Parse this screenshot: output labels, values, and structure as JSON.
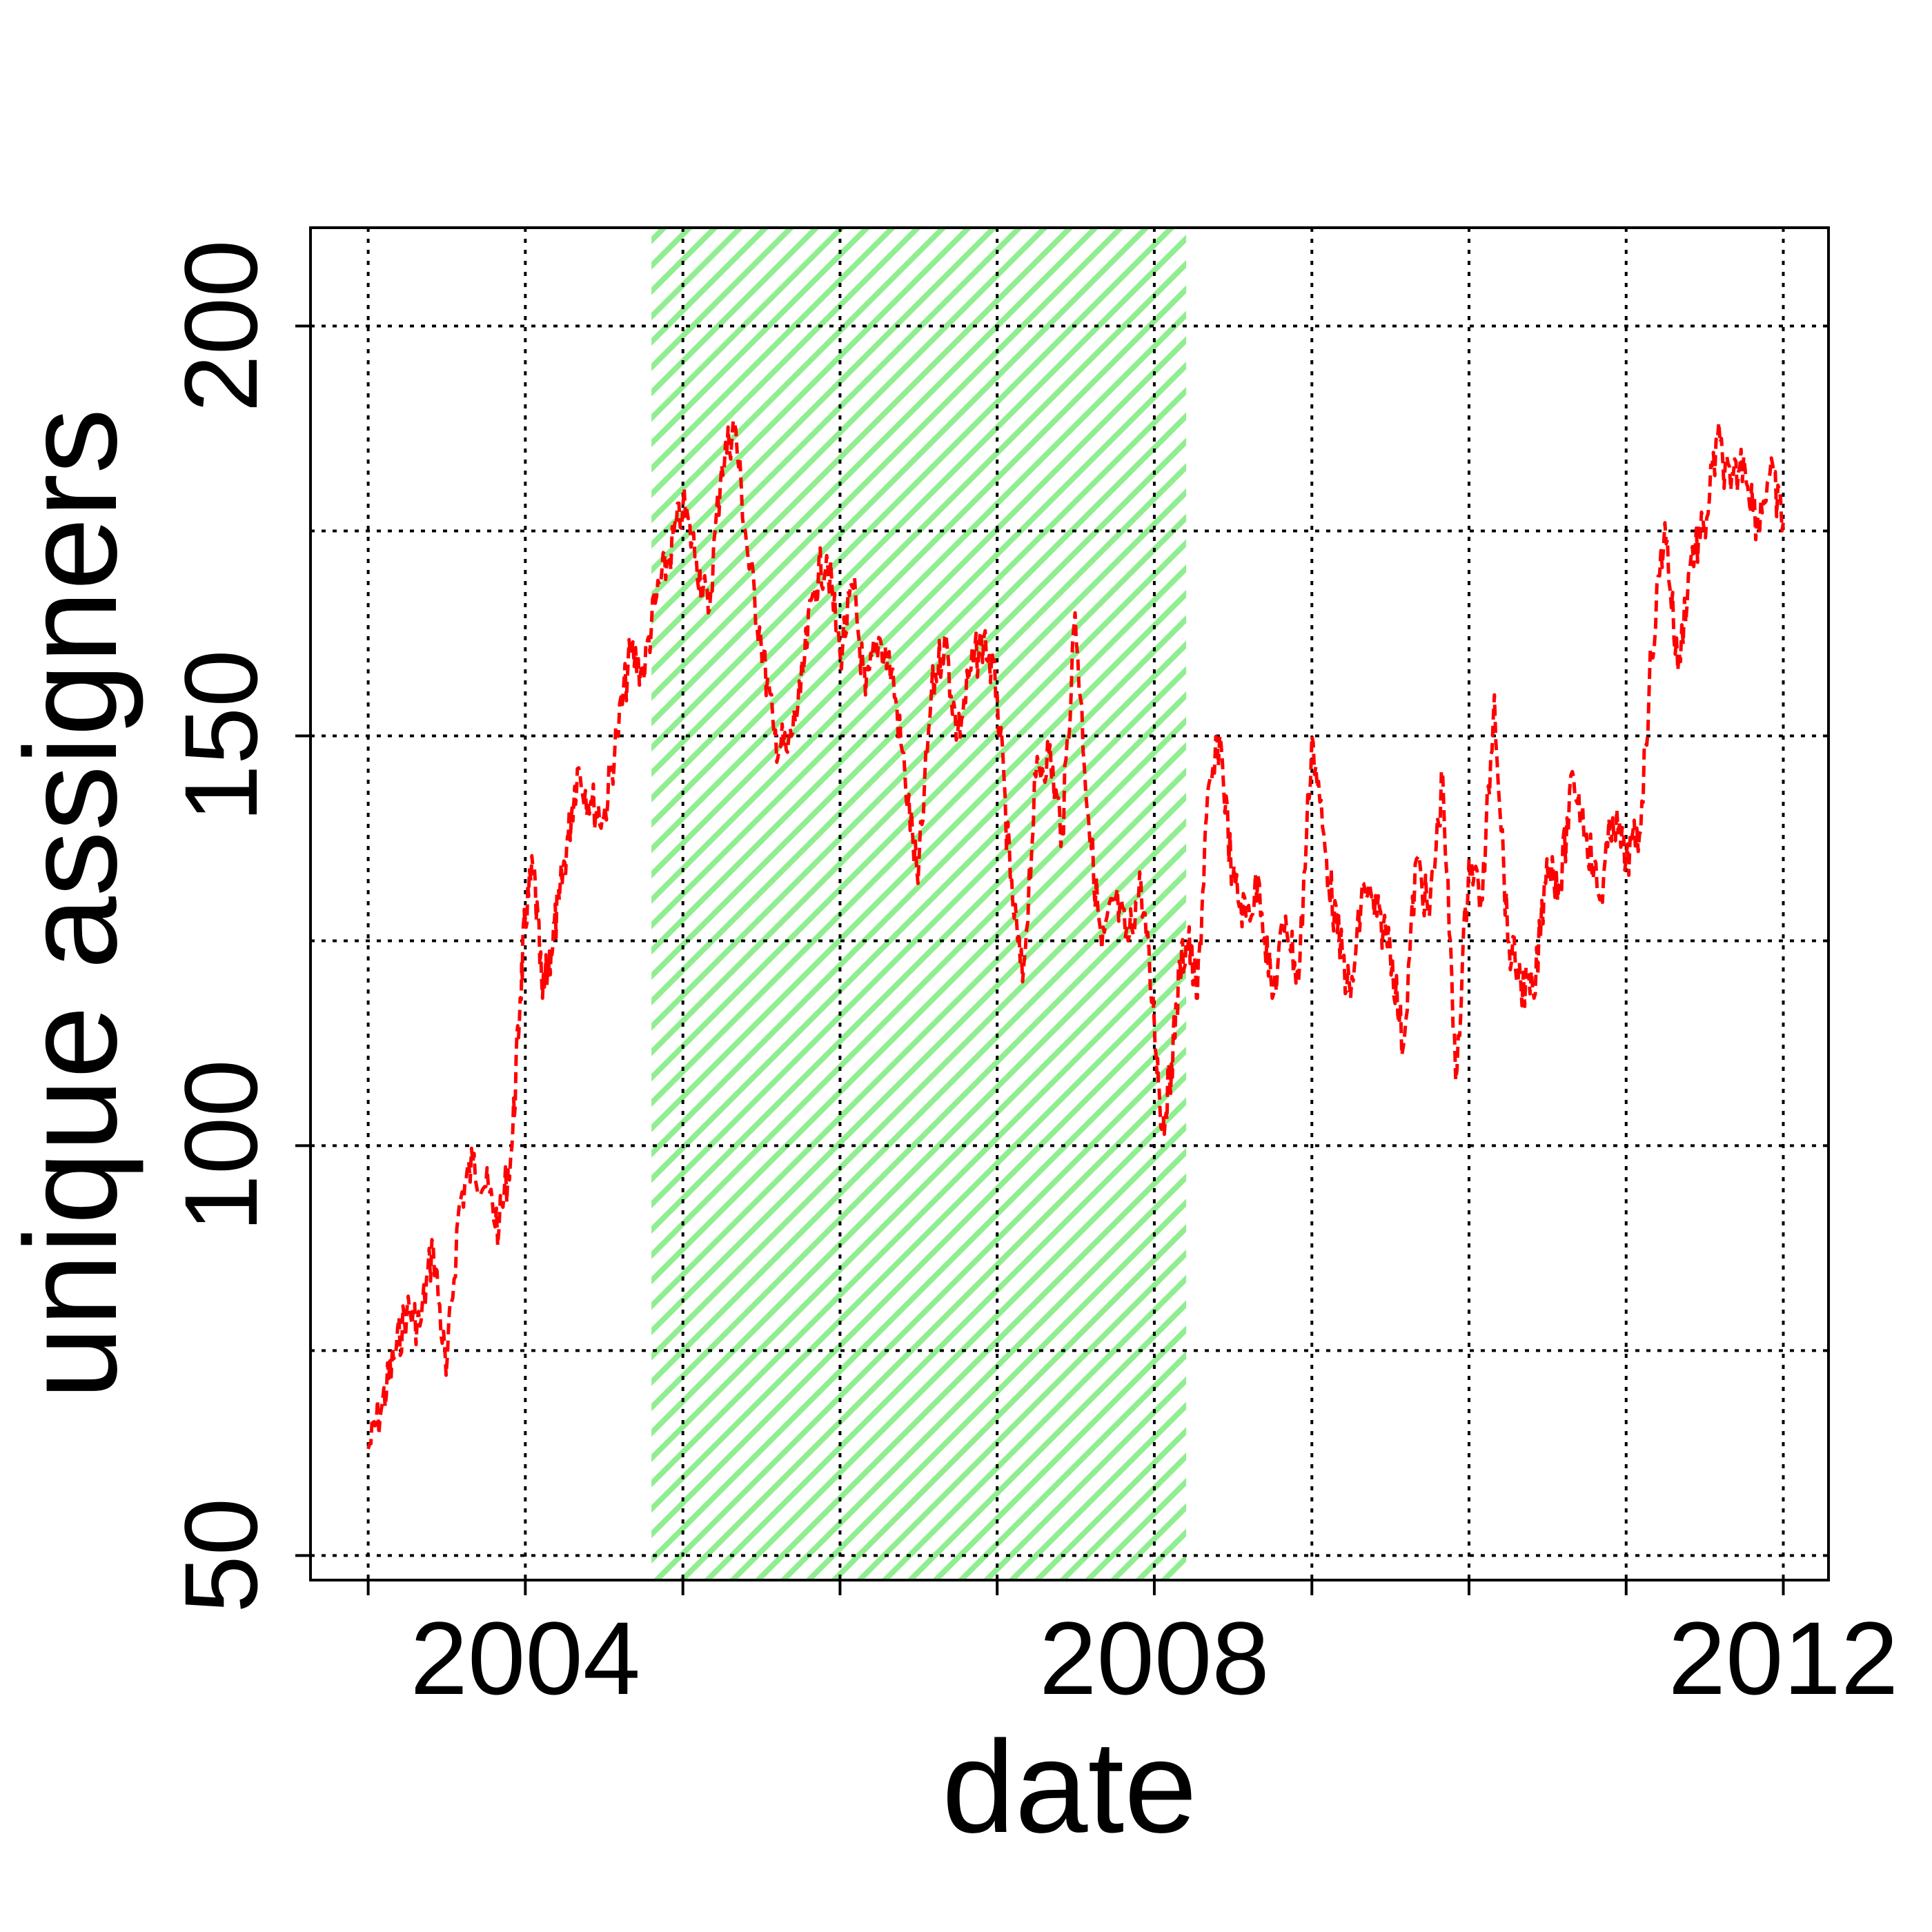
{
  "chart_data": {
    "type": "line",
    "xlabel": "date",
    "ylabel": "unique assigners",
    "xlim": [
      "2002-08-20",
      "2012-04-15"
    ],
    "ylim": [
      47,
      212
    ],
    "x_ticks": [
      "2003-01-01",
      "2004-01-01",
      "2005-01-01",
      "2006-01-01",
      "2007-01-01",
      "2008-01-01",
      "2009-01-01",
      "2010-01-01",
      "2011-01-01",
      "2012-01-01"
    ],
    "x_tick_labels": [
      {
        "date": "2004-01-01",
        "label": "2004"
      },
      {
        "date": "2008-01-01",
        "label": "2008"
      },
      {
        "date": "2012-01-01",
        "label": "2012"
      }
    ],
    "y_ticks": [
      50,
      100,
      150,
      200
    ],
    "y_grid": [
      50,
      75,
      100,
      125,
      150,
      175,
      200
    ],
    "grid": true,
    "shaded_region": {
      "start": "2004-10-20",
      "end": "2008-03-15",
      "color": "#90ee90",
      "pattern": "diagonal hatch"
    },
    "series_color": "#ff0000",
    "line_style": "dashed",
    "series": [
      {
        "points": [
          [
            "2003-01-01",
            63
          ],
          [
            "2003-02-01",
            68
          ],
          [
            "2003-03-01",
            74
          ],
          [
            "2003-04-01",
            80
          ],
          [
            "2003-05-01",
            78
          ],
          [
            "2003-06-01",
            88
          ],
          [
            "2003-07-01",
            72
          ],
          [
            "2003-08-01",
            93
          ],
          [
            "2003-09-01",
            98
          ],
          [
            "2003-10-01",
            95
          ],
          [
            "2003-11-01",
            90
          ],
          [
            "2003-12-01",
            100
          ],
          [
            "2003-12-20",
            118
          ],
          [
            "2004-01-01",
            128
          ],
          [
            "2004-01-20",
            134
          ],
          [
            "2004-02-10",
            118
          ],
          [
            "2004-03-01",
            124
          ],
          [
            "2004-03-20",
            130
          ],
          [
            "2004-04-10",
            138
          ],
          [
            "2004-05-01",
            146
          ],
          [
            "2004-06-01",
            142
          ],
          [
            "2004-07-01",
            140
          ],
          [
            "2004-08-01",
            150
          ],
          [
            "2004-09-01",
            160
          ],
          [
            "2004-10-01",
            158
          ],
          [
            "2004-11-01",
            167
          ],
          [
            "2004-12-01",
            172
          ],
          [
            "2005-01-01",
            178
          ],
          [
            "2005-02-01",
            172
          ],
          [
            "2005-03-01",
            165
          ],
          [
            "2005-04-01",
            183
          ],
          [
            "2005-05-01",
            188
          ],
          [
            "2005-06-01",
            172
          ],
          [
            "2005-07-01",
            162
          ],
          [
            "2005-08-01",
            150
          ],
          [
            "2005-09-01",
            148
          ],
          [
            "2005-10-01",
            155
          ],
          [
            "2005-11-01",
            168
          ],
          [
            "2005-12-01",
            172
          ],
          [
            "2006-01-01",
            160
          ],
          [
            "2006-02-01",
            168
          ],
          [
            "2006-03-01",
            155
          ],
          [
            "2006-04-01",
            162
          ],
          [
            "2006-05-01",
            158
          ],
          [
            "2006-06-01",
            145
          ],
          [
            "2006-07-01",
            132
          ],
          [
            "2006-08-01",
            155
          ],
          [
            "2006-09-01",
            162
          ],
          [
            "2006-10-01",
            150
          ],
          [
            "2006-11-01",
            158
          ],
          [
            "2006-12-01",
            162
          ],
          [
            "2007-01-01",
            155
          ],
          [
            "2007-02-01",
            132
          ],
          [
            "2007-03-01",
            120
          ],
          [
            "2007-04-01",
            145
          ],
          [
            "2007-05-01",
            148
          ],
          [
            "2007-06-01",
            138
          ],
          [
            "2007-07-01",
            165
          ],
          [
            "2007-08-01",
            140
          ],
          [
            "2007-09-01",
            124
          ],
          [
            "2007-10-01",
            130
          ],
          [
            "2007-11-01",
            125
          ],
          [
            "2007-12-01",
            132
          ],
          [
            "2008-01-01",
            115
          ],
          [
            "2008-01-20",
            102
          ],
          [
            "2008-02-10",
            110
          ],
          [
            "2008-03-01",
            122
          ],
          [
            "2008-03-20",
            125
          ],
          [
            "2008-04-10",
            118
          ],
          [
            "2008-05-01",
            140
          ],
          [
            "2008-06-01",
            150
          ],
          [
            "2008-07-01",
            132
          ],
          [
            "2008-08-01",
            128
          ],
          [
            "2008-09-01",
            132
          ],
          [
            "2008-10-01",
            118
          ],
          [
            "2008-11-01",
            128
          ],
          [
            "2008-12-01",
            120
          ],
          [
            "2009-01-01",
            150
          ],
          [
            "2009-02-01",
            136
          ],
          [
            "2009-03-01",
            126
          ],
          [
            "2009-04-01",
            118
          ],
          [
            "2009-05-01",
            132
          ],
          [
            "2009-06-01",
            128
          ],
          [
            "2009-07-01",
            125
          ],
          [
            "2009-08-01",
            112
          ],
          [
            "2009-09-01",
            135
          ],
          [
            "2009-10-01",
            128
          ],
          [
            "2009-11-01",
            145
          ],
          [
            "2009-12-01",
            108
          ],
          [
            "2010-01-01",
            135
          ],
          [
            "2010-02-01",
            130
          ],
          [
            "2010-03-01",
            155
          ],
          [
            "2010-04-01",
            125
          ],
          [
            "2010-05-01",
            120
          ],
          [
            "2010-06-01",
            118
          ],
          [
            "2010-07-01",
            135
          ],
          [
            "2010-08-01",
            132
          ],
          [
            "2010-09-01",
            145
          ],
          [
            "2010-10-01",
            138
          ],
          [
            "2010-11-01",
            130
          ],
          [
            "2010-12-01",
            140
          ],
          [
            "2011-01-01",
            135
          ],
          [
            "2011-02-01",
            138
          ],
          [
            "2011-03-01",
            160
          ],
          [
            "2011-04-01",
            176
          ],
          [
            "2011-05-01",
            158
          ],
          [
            "2011-06-01",
            172
          ],
          [
            "2011-07-01",
            175
          ],
          [
            "2011-08-01",
            186
          ],
          [
            "2011-09-01",
            180
          ],
          [
            "2011-10-01",
            184
          ],
          [
            "2011-11-01",
            176
          ],
          [
            "2011-12-01",
            182
          ],
          [
            "2012-01-01",
            176
          ]
        ]
      }
    ]
  }
}
